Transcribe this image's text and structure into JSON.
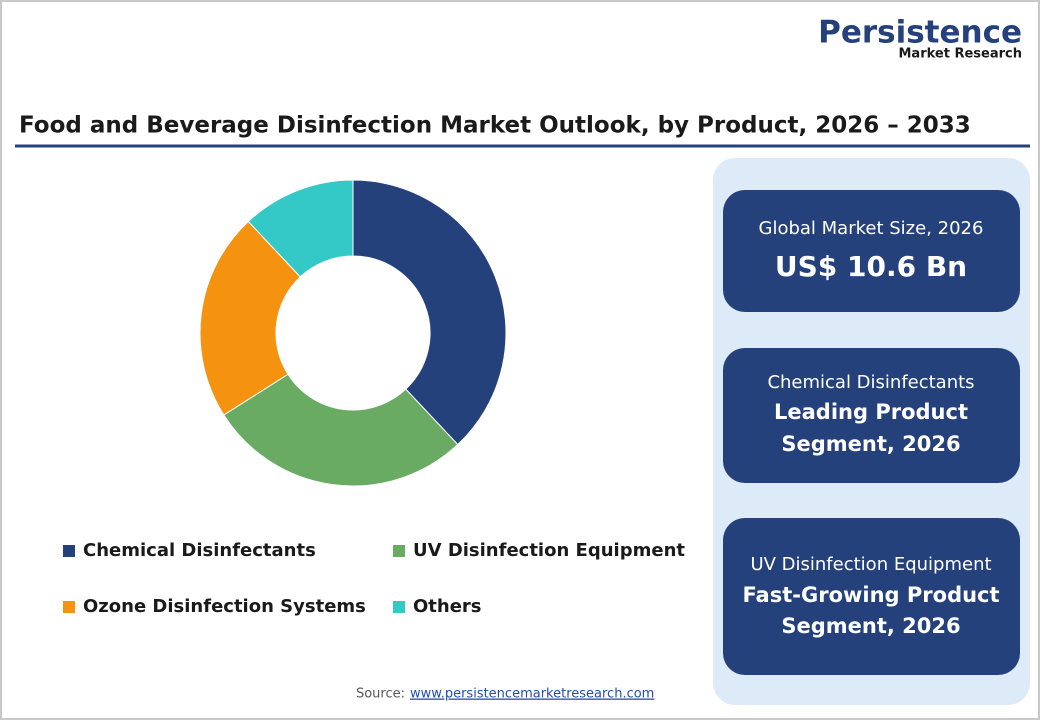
{
  "logo": {
    "name": "Persistence",
    "tagline": "Market Research"
  },
  "chart_data": {
    "type": "donut",
    "title": "Food and Beverage Disinfection Market Outlook, by Product, 2026 – 2033",
    "categories": [
      "Chemical Disinfectants",
      "UV Disinfection Equipment",
      "Ozone Disinfection Systems",
      "Others"
    ],
    "values": [
      38,
      28,
      22,
      12
    ],
    "colors": [
      "#24417c",
      "#6aab64",
      "#f5920f",
      "#34c9c6"
    ]
  },
  "cards": [
    {
      "lines": [
        "Global Market Size, 2026",
        "US$ 10.6 Bn"
      ]
    },
    {
      "lines": [
        "Chemical Disinfectants",
        "Leading Product",
        "Segment, 2026"
      ]
    },
    {
      "lines": [
        "UV Disinfection Equipment",
        "Fast-Growing Product",
        "Segment, 2026"
      ]
    }
  ],
  "source": {
    "label": "Source:",
    "url": "www.persistencemarketresearch.com"
  }
}
